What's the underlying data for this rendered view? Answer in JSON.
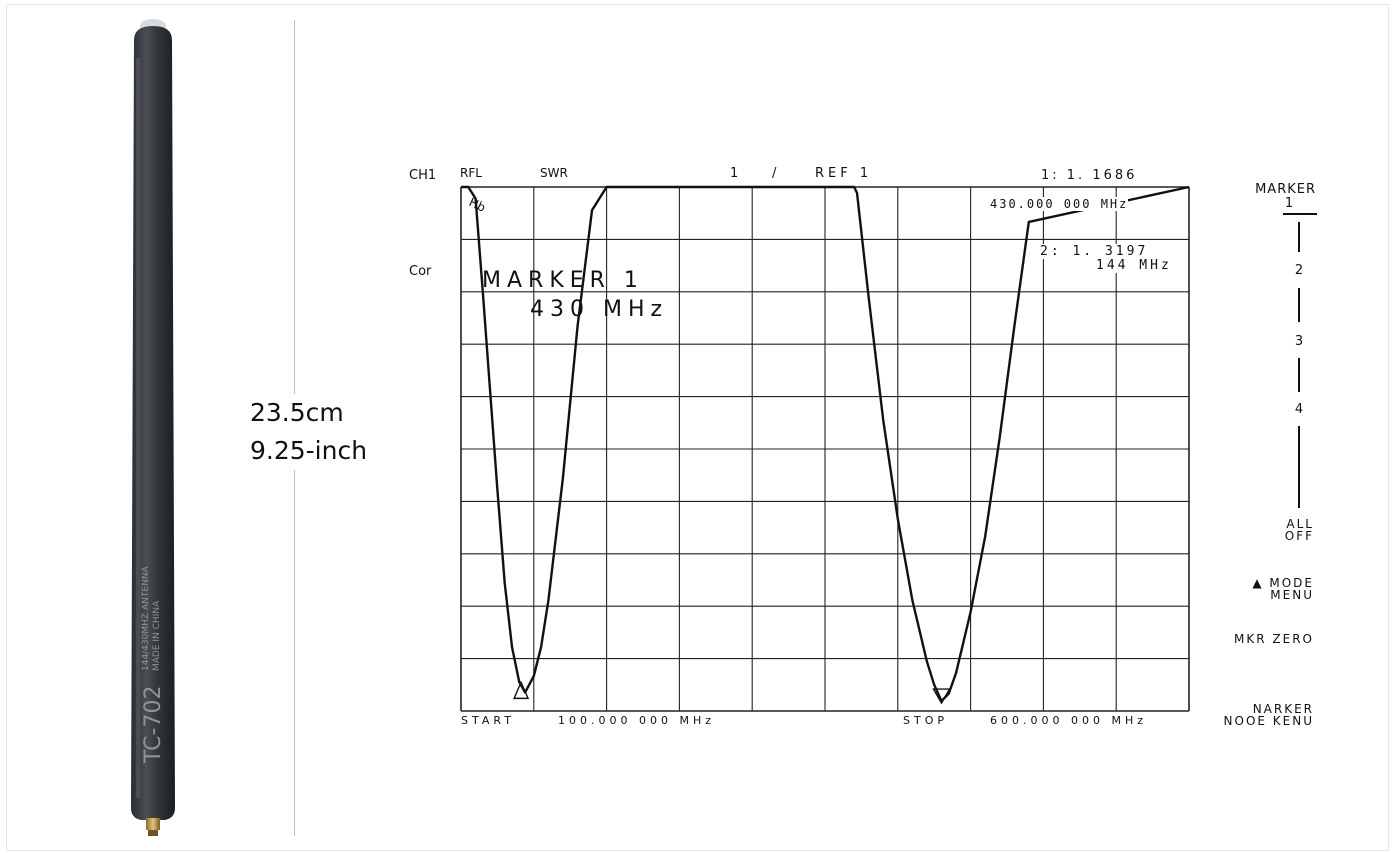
{
  "product": {
    "length_cm": "23.5cm",
    "length_in": "9.25-inch",
    "body_model": "TC-702",
    "body_line1": "144/430MHZ ANTENNA",
    "body_line2": "MADE IN CHINA"
  },
  "analyzer": {
    "channel": "CH1",
    "cor": "Cor",
    "rfl": "RFL",
    "swr": "SWR",
    "scale_num": "1",
    "scale_slash": "/",
    "scale_ref": "REF 1",
    "marker1_value": "1:  1. 1686",
    "marker1_freq": "430.000 000  MHz",
    "marker2_value": "2:  1. 3197",
    "marker2_freq": "144 MHz",
    "hold": "Hb",
    "overlay_title": "MARKER  1",
    "overlay_freq": "430 MHz",
    "start_label": "START",
    "start_value": "100.000 000   MHz",
    "stop_label": "STOP",
    "stop_value": "600.000 000   MHz"
  },
  "menu": {
    "title": "MARKER",
    "item1": "1",
    "item2": "2",
    "item3": "3",
    "item4": "4",
    "all": "ALL",
    "off": "OFF",
    "mode": "▲ MODE",
    "mode_menu": "MENU",
    "mkr_zero": "MKR  ZERO",
    "narker": "NARKER",
    "nooe_kenu": "NOOE KENU"
  },
  "chart_data": {
    "type": "line",
    "xlabel": "",
    "ylabel": "",
    "xlim": [
      100,
      600
    ],
    "ylim": [
      1,
      10
    ],
    "grid": true,
    "series": [
      {
        "x": [
          100,
          102,
          105,
          110,
          115,
          120,
          125,
          130,
          135,
          140,
          144,
          150,
          155,
          160,
          170,
          180,
          190,
          200,
          230,
          300,
          370,
          372,
          380,
          390,
          400,
          410,
          420,
          425,
          430,
          435,
          440,
          450,
          460,
          470,
          480,
          490,
          600
        ],
        "y": [
          10,
          10,
          10,
          9.8,
          8.2,
          6.5,
          4.8,
          3.2,
          2.1,
          1.5,
          1.32,
          1.6,
          2.1,
          2.9,
          5.0,
          7.6,
          9.6,
          10,
          10,
          10,
          10,
          9.9,
          8.1,
          6.0,
          4.3,
          2.9,
          1.85,
          1.45,
          1.17,
          1.3,
          1.65,
          2.7,
          4.0,
          5.7,
          7.6,
          9.4,
          10
        ]
      }
    ],
    "markers": [
      {
        "id": 2,
        "x": 144,
        "y": 1.32,
        "symbol": "triangle-up"
      },
      {
        "id": 1,
        "x": 430,
        "y": 1.17,
        "symbol": "triangle-down"
      }
    ],
    "grid_divisions": {
      "x": 10,
      "y": 10
    }
  }
}
